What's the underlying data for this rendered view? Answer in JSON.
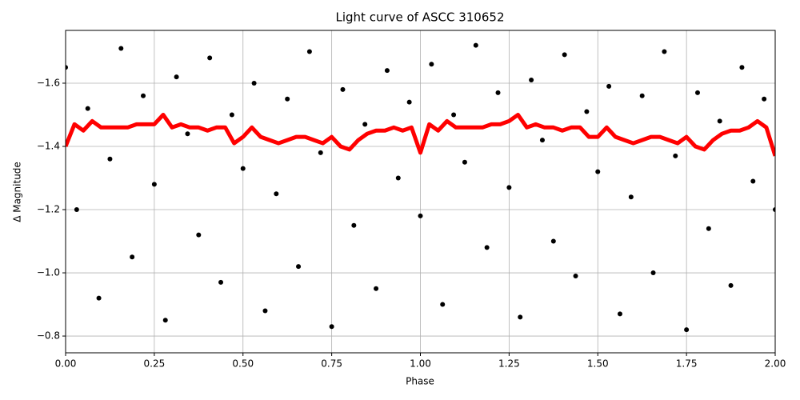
{
  "chart_data": {
    "type": "scatter",
    "title": "Light curve of ASCC 310652",
    "x_label": "Phase",
    "y_label": "Δ Magnitude",
    "xlim": [
      0,
      2
    ],
    "ylim": [
      -0.747,
      -1.767
    ],
    "grid": true,
    "xticks": [
      {
        "value": 0,
        "label": "0.00"
      },
      {
        "value": 0.25,
        "label": "0.25"
      },
      {
        "value": 0.5,
        "label": "0.50"
      },
      {
        "value": 0.75,
        "label": "0.75"
      },
      {
        "value": 1,
        "label": "1.00"
      },
      {
        "value": 1.25,
        "label": "1.25"
      },
      {
        "value": 1.5,
        "label": "1.50"
      },
      {
        "value": 1.75,
        "label": "1.75"
      },
      {
        "value": 2,
        "label": "2.00"
      }
    ],
    "yticks": [
      {
        "value": -1.6,
        "label": "−1.6"
      },
      {
        "value": -1.4,
        "label": "−1.4"
      },
      {
        "value": -1.2,
        "label": "−1.2"
      },
      {
        "value": -1.0,
        "label": "−1.0"
      },
      {
        "value": -0.8,
        "label": "−0.8"
      }
    ],
    "series": [
      {
        "type": "scatter",
        "color": "#000000",
        "x": [
          0,
          0.03125,
          0.0625,
          0.09375,
          0.125,
          0.15625,
          0.1875,
          0.21875,
          0.25,
          0.28125,
          0.3125,
          0.34375,
          0.375,
          0.40625,
          0.4375,
          0.46875,
          0.5,
          0.53125,
          0.5625,
          0.59375,
          0.625,
          0.65625,
          0.6875,
          0.71875,
          0.75,
          0.78125,
          0.8125,
          0.84375,
          0.875,
          0.90625,
          0.9375,
          0.96875,
          1,
          1.03125,
          1.0625,
          1.09375,
          1.125,
          1.15625,
          1.1875,
          1.21875,
          1.25,
          1.28125,
          1.3125,
          1.34375,
          1.375,
          1.40625,
          1.4375,
          1.46875,
          1.5,
          1.53125,
          1.5625,
          1.59375,
          1.625,
          1.65625,
          1.6875,
          1.71875,
          1.75,
          1.78125,
          1.8125,
          1.84375,
          1.875,
          1.90625,
          1.9375,
          1.96875,
          2
        ],
        "y": [
          -1.65,
          -1.2,
          -1.52,
          -0.92,
          -1.36,
          -1.71,
          -1.05,
          -1.56,
          -1.28,
          -0.85,
          -1.62,
          -1.44,
          -1.12,
          -1.68,
          -0.97,
          -1.5,
          -1.33,
          -1.6,
          -0.88,
          -1.25,
          -1.55,
          -1.02,
          -1.7,
          -1.38,
          -0.83,
          -1.58,
          -1.15,
          -1.47,
          -0.95,
          -1.64,
          -1.3,
          -1.54,
          -1.18,
          -1.66,
          -0.9,
          -1.5,
          -1.35,
          -1.72,
          -1.08,
          -1.57,
          -1.27,
          -0.86,
          -1.61,
          -1.42,
          -1.1,
          -1.69,
          -0.99,
          -1.51,
          -1.32,
          -1.59,
          -0.87,
          -1.24,
          -1.56,
          -1.0,
          -1.7,
          -1.37,
          -0.82,
          -1.57,
          -1.14,
          -1.48,
          -0.96,
          -1.65,
          -1.29,
          -1.55,
          -1.2
        ]
      },
      {
        "type": "line",
        "color": "#ff0000",
        "x": [
          0,
          0.025,
          0.05,
          0.075,
          0.1,
          0.125,
          0.15,
          0.175,
          0.2,
          0.225,
          0.25,
          0.275,
          0.3,
          0.325,
          0.35,
          0.375,
          0.4,
          0.425,
          0.45,
          0.475,
          0.5,
          0.525,
          0.55,
          0.575,
          0.6,
          0.625,
          0.65,
          0.675,
          0.7,
          0.725,
          0.75,
          0.775,
          0.8,
          0.825,
          0.85,
          0.875,
          0.9,
          0.925,
          0.95,
          0.975,
          1,
          1.025,
          1.05,
          1.075,
          1.1,
          1.125,
          1.15,
          1.175,
          1.2,
          1.225,
          1.25,
          1.275,
          1.3,
          1.325,
          1.35,
          1.375,
          1.4,
          1.425,
          1.45,
          1.475,
          1.5,
          1.525,
          1.55,
          1.575,
          1.6,
          1.625,
          1.65,
          1.675,
          1.7,
          1.725,
          1.75,
          1.775,
          1.8,
          1.825,
          1.85,
          1.875,
          1.9,
          1.925,
          1.95,
          1.975,
          2
        ],
        "y": [
          -1.4,
          -1.47,
          -1.45,
          -1.48,
          -1.46,
          -1.46,
          -1.46,
          -1.46,
          -1.47,
          -1.47,
          -1.47,
          -1.5,
          -1.46,
          -1.47,
          -1.46,
          -1.46,
          -1.45,
          -1.46,
          -1.46,
          -1.41,
          -1.43,
          -1.46,
          -1.43,
          -1.42,
          -1.41,
          -1.42,
          -1.43,
          -1.43,
          -1.42,
          -1.41,
          -1.43,
          -1.4,
          -1.39,
          -1.42,
          -1.44,
          -1.45,
          -1.45,
          -1.46,
          -1.45,
          -1.46,
          -1.38,
          -1.47,
          -1.45,
          -1.48,
          -1.46,
          -1.46,
          -1.46,
          -1.46,
          -1.47,
          -1.47,
          -1.48,
          -1.5,
          -1.46,
          -1.47,
          -1.46,
          -1.46,
          -1.45,
          -1.46,
          -1.46,
          -1.43,
          -1.43,
          -1.46,
          -1.43,
          -1.42,
          -1.41,
          -1.42,
          -1.43,
          -1.43,
          -1.42,
          -1.41,
          -1.43,
          -1.4,
          -1.39,
          -1.42,
          -1.44,
          -1.45,
          -1.45,
          -1.46,
          -1.48,
          -1.46,
          -1.37
        ]
      }
    ]
  }
}
